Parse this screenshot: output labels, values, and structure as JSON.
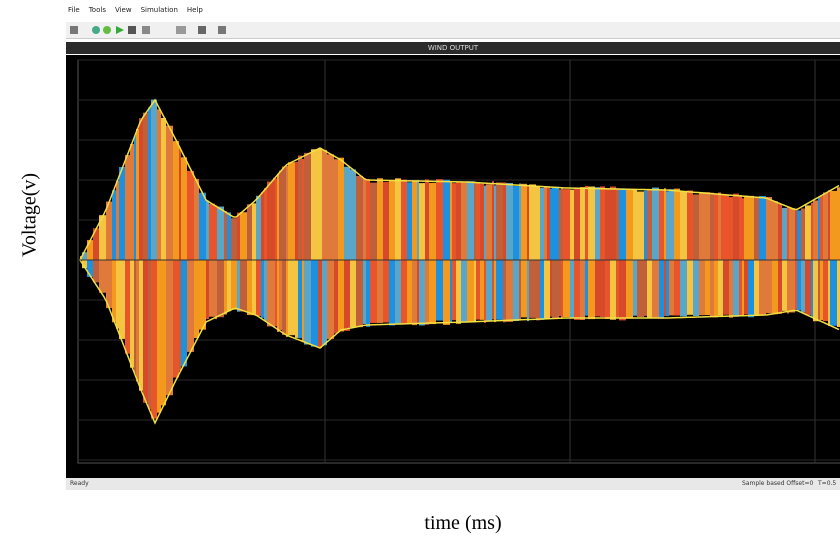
{
  "menu": [
    "File",
    "Tools",
    "View",
    "Simulation",
    "Help"
  ],
  "scope": {
    "title": "WIND OUTPUT"
  },
  "status": {
    "left": "Ready",
    "right": "Sample based  Offset=0",
    "time": "T=0.5"
  },
  "figure": {
    "ylabel": "Voltage(v)",
    "xlabel": "time (ms)"
  }
}
